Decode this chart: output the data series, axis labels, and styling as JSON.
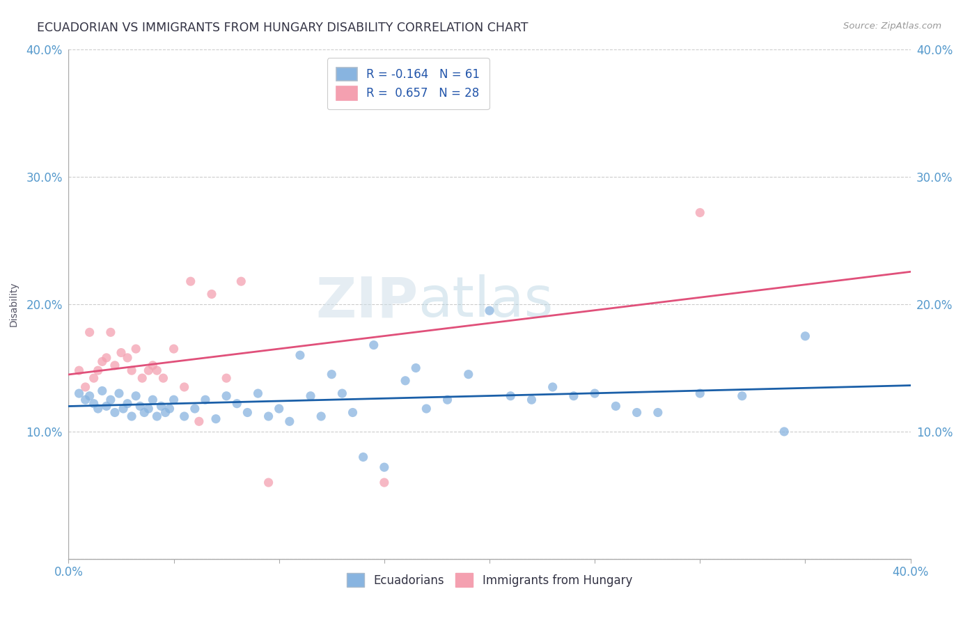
{
  "title": "ECUADORIAN VS IMMIGRANTS FROM HUNGARY DISABILITY CORRELATION CHART",
  "source": "Source: ZipAtlas.com",
  "ylabel": "Disability",
  "xlim": [
    0.0,
    0.4
  ],
  "ylim": [
    0.0,
    0.4
  ],
  "ytick_vals": [
    0.0,
    0.1,
    0.2,
    0.3,
    0.4
  ],
  "ytick_labels_left": [
    "",
    "10.0%",
    "20.0%",
    "30.0%",
    "40.0%"
  ],
  "ytick_labels_right": [
    "",
    "10.0%",
    "20.0%",
    "30.0%",
    "40.0%"
  ],
  "xtick_vals": [
    0.0,
    0.05,
    0.1,
    0.15,
    0.2,
    0.25,
    0.3,
    0.35,
    0.4
  ],
  "xtick_label_left": "0.0%",
  "xtick_label_right": "40.0%",
  "watermark_zip": "ZIP",
  "watermark_atlas": "atlas",
  "background_color": "#ffffff",
  "grid_color": "#cccccc",
  "blue_color": "#88b4e0",
  "pink_color": "#f4a0b0",
  "blue_line_color": "#1a5fa8",
  "pink_line_color": "#e0507a",
  "R_blue": -0.164,
  "N_blue": 61,
  "R_pink": 0.657,
  "N_pink": 28,
  "blue_points_x": [
    0.005,
    0.008,
    0.01,
    0.012,
    0.014,
    0.016,
    0.018,
    0.02,
    0.022,
    0.024,
    0.026,
    0.028,
    0.03,
    0.032,
    0.034,
    0.036,
    0.038,
    0.04,
    0.042,
    0.044,
    0.046,
    0.048,
    0.05,
    0.055,
    0.06,
    0.065,
    0.07,
    0.075,
    0.08,
    0.085,
    0.09,
    0.095,
    0.1,
    0.105,
    0.11,
    0.115,
    0.12,
    0.125,
    0.13,
    0.135,
    0.14,
    0.145,
    0.15,
    0.16,
    0.165,
    0.17,
    0.18,
    0.19,
    0.2,
    0.21,
    0.22,
    0.23,
    0.24,
    0.25,
    0.26,
    0.27,
    0.28,
    0.3,
    0.32,
    0.34,
    0.35
  ],
  "blue_points_y": [
    0.13,
    0.125,
    0.128,
    0.122,
    0.118,
    0.132,
    0.12,
    0.125,
    0.115,
    0.13,
    0.118,
    0.122,
    0.112,
    0.128,
    0.12,
    0.115,
    0.118,
    0.125,
    0.112,
    0.12,
    0.115,
    0.118,
    0.125,
    0.112,
    0.118,
    0.125,
    0.11,
    0.128,
    0.122,
    0.115,
    0.13,
    0.112,
    0.118,
    0.108,
    0.16,
    0.128,
    0.112,
    0.145,
    0.13,
    0.115,
    0.08,
    0.168,
    0.072,
    0.14,
    0.15,
    0.118,
    0.125,
    0.145,
    0.195,
    0.128,
    0.125,
    0.135,
    0.128,
    0.13,
    0.12,
    0.115,
    0.115,
    0.13,
    0.128,
    0.1,
    0.175
  ],
  "pink_points_x": [
    0.005,
    0.008,
    0.01,
    0.012,
    0.014,
    0.016,
    0.018,
    0.02,
    0.022,
    0.025,
    0.028,
    0.03,
    0.032,
    0.035,
    0.038,
    0.04,
    0.042,
    0.045,
    0.05,
    0.055,
    0.058,
    0.062,
    0.068,
    0.075,
    0.082,
    0.095,
    0.15,
    0.3
  ],
  "pink_points_y": [
    0.148,
    0.135,
    0.178,
    0.142,
    0.148,
    0.155,
    0.158,
    0.178,
    0.152,
    0.162,
    0.158,
    0.148,
    0.165,
    0.142,
    0.148,
    0.152,
    0.148,
    0.142,
    0.165,
    0.135,
    0.218,
    0.108,
    0.208,
    0.142,
    0.218,
    0.06,
    0.06,
    0.272
  ]
}
